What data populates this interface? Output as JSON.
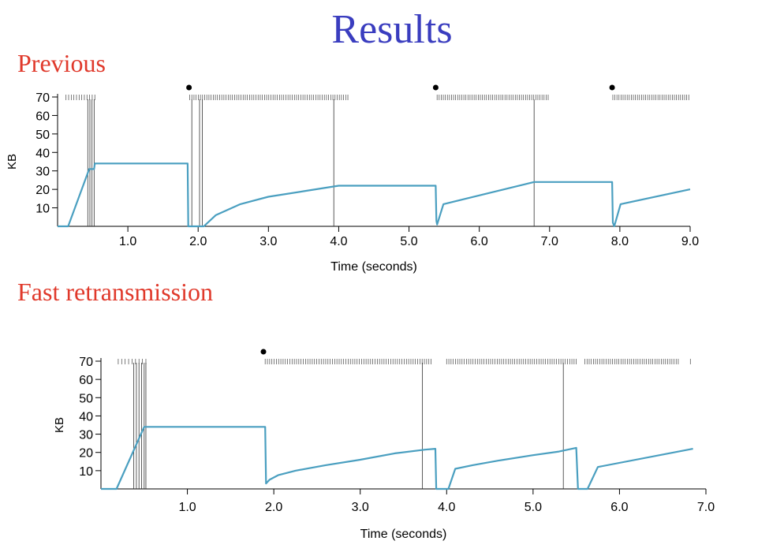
{
  "slide": {
    "title": "Results",
    "title_color": "#3a3dbf",
    "heading_color": "#e0392b",
    "line_color": "#4a9fc0"
  },
  "sections": [
    {
      "heading": "Previous"
    },
    {
      "heading": "Fast retransmission"
    }
  ],
  "chart_data": [
    {
      "type": "line",
      "section": "Previous",
      "xlabel": "Time (seconds)",
      "ylabel": "KB",
      "xlim": [
        0,
        9.0
      ],
      "ylim": [
        0,
        70
      ],
      "xticks": [
        1.0,
        2.0,
        3.0,
        4.0,
        5.0,
        6.0,
        7.0,
        8.0,
        9.0
      ],
      "xtick_labels": [
        "1.0",
        "2.0",
        "3.0",
        "4.0",
        "5.0",
        "6.0",
        "7.0",
        "8.0",
        "9.0"
      ],
      "yticks": [
        10,
        20,
        30,
        40,
        50,
        60,
        70
      ],
      "ytick_labels": [
        "10",
        "20",
        "30",
        "40",
        "50",
        "60",
        "70"
      ],
      "series": [
        {
          "x": [
            0,
            0.15,
            0.45,
            0.5,
            0.52,
            0.53,
            1.85,
            1.86,
            2.08,
            2.25,
            2.6,
            3.0,
            3.5,
            4.0,
            5.38,
            5.39,
            5.4,
            5.49,
            6.78,
            7.89,
            7.9,
            7.92,
            8.01,
            9.0
          ],
          "y": [
            0,
            0,
            31,
            31,
            31,
            34,
            34,
            0,
            0,
            6,
            12,
            16,
            19,
            22,
            22,
            3,
            1,
            12,
            24,
            24,
            2,
            0,
            12,
            20
          ]
        }
      ],
      "timeout_markers": [
        1.87,
        5.38,
        7.89
      ],
      "retransmit_lines": [
        0.43,
        0.46,
        0.49,
        0.52,
        1.91,
        2.02,
        2.06,
        3.93,
        6.78
      ],
      "send_tick_ranges": [
        [
          0.12,
          0.53,
          12
        ],
        [
          1.88,
          4.13,
          75
        ],
        [
          5.4,
          6.98,
          55
        ],
        [
          7.9,
          8.98,
          38
        ]
      ]
    },
    {
      "type": "line",
      "section": "Fast retransmission",
      "xlabel": "Time (seconds)",
      "ylabel": "KB",
      "xlim": [
        0,
        7.0
      ],
      "ylim": [
        0,
        70
      ],
      "xticks": [
        1.0,
        2.0,
        3.0,
        4.0,
        5.0,
        6.0,
        7.0
      ],
      "xtick_labels": [
        "1.0",
        "2.0",
        "3.0",
        "4.0",
        "5.0",
        "6.0",
        "7.0"
      ],
      "yticks": [
        10,
        20,
        30,
        40,
        50,
        60,
        70
      ],
      "ytick_labels": [
        "10",
        "20",
        "30",
        "40",
        "50",
        "60",
        "70"
      ],
      "series": [
        {
          "x": [
            0,
            0.18,
            0.5,
            0.52,
            1.9,
            1.91,
            1.95,
            2.05,
            2.25,
            2.6,
            3.0,
            3.4,
            3.75,
            3.87,
            3.88,
            3.92,
            4.02,
            4.1,
            4.3,
            4.6,
            5.0,
            5.3,
            5.5,
            5.52,
            5.63,
            5.75,
            6.85
          ],
          "y": [
            0,
            0,
            34,
            34,
            34,
            3,
            5,
            7.5,
            10,
            13,
            16,
            19.5,
            21.5,
            22,
            0,
            0,
            0,
            11,
            13,
            15.5,
            18.5,
            20.5,
            22.5,
            0,
            0,
            12,
            22
          ]
        }
      ],
      "timeout_markers": [
        1.88
      ],
      "retransmit_lines": [
        0.38,
        0.41,
        0.44,
        0.47,
        0.5,
        0.52,
        3.72,
        5.35
      ],
      "send_tick_ranges": [
        [
          0.2,
          0.52,
          9
        ],
        [
          1.9,
          3.82,
          75
        ],
        [
          4.0,
          5.5,
          60
        ],
        [
          5.6,
          6.68,
          45
        ],
        [
          6.82,
          6.83,
          1
        ]
      ]
    }
  ]
}
